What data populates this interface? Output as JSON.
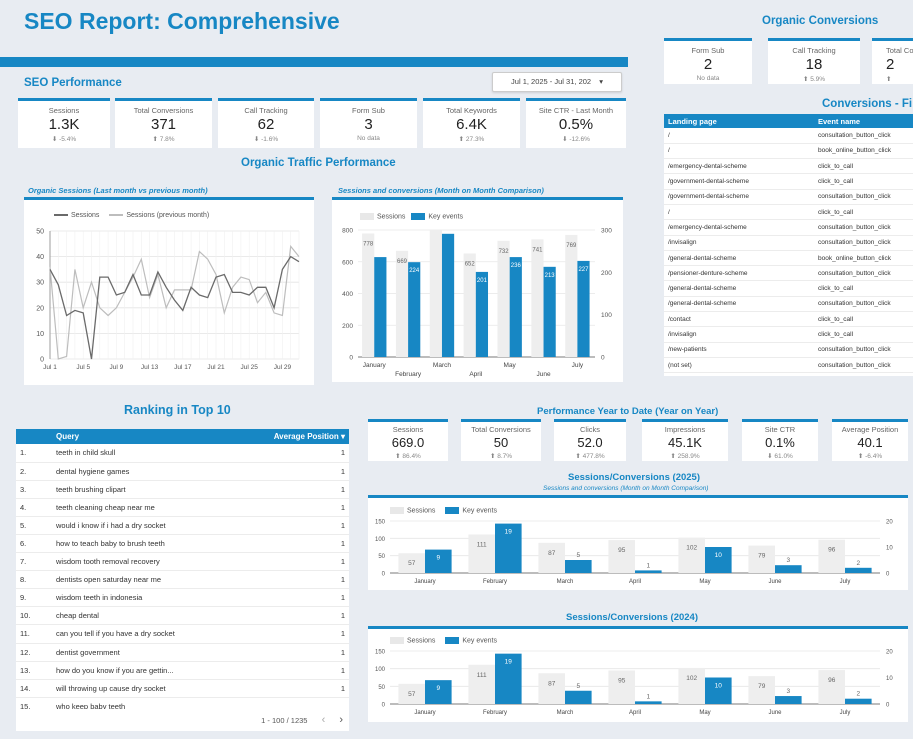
{
  "title": "SEO Report: Comprehensive",
  "seo_performance": {
    "heading": "SEO Performance",
    "date_range": "Jul 1, 2025 - Jul 31, 202",
    "cards": [
      {
        "label": "Sessions",
        "value": "1.3K",
        "delta": "-5.4%"
      },
      {
        "label": "Total Conversions",
        "value": "371",
        "delta": "7.8%"
      },
      {
        "label": "Call Tracking",
        "value": "62",
        "delta": "-1.6%"
      },
      {
        "label": "Form Sub",
        "value": "3",
        "delta": "No data"
      },
      {
        "label": "Total Keywords",
        "value": "6.4K",
        "delta": "27.3%"
      },
      {
        "label": "Site CTR - Last Month",
        "value": "0.5%",
        "delta": "-12.6%"
      }
    ]
  },
  "organic_traffic_heading": "Organic Traffic Performance",
  "organic_conversions": {
    "heading": "Organic Conversions",
    "cards": [
      {
        "label": "Form Sub",
        "value": "2",
        "delta": "No data"
      },
      {
        "label": "Call Tracking",
        "value": "18",
        "delta": "5.9%"
      },
      {
        "label": "Total Co",
        "value": "2",
        "delta": ""
      }
    ]
  },
  "conversions_table": {
    "heading": "Conversions - Fi",
    "columns": [
      "Landing page",
      "Event name"
    ],
    "rows": [
      [
        "/",
        "consultation_button_click"
      ],
      [
        "/",
        "book_online_button_click"
      ],
      [
        "/emergency-dental-scheme",
        "click_to_call"
      ],
      [
        "/government-dental-scheme",
        "click_to_call"
      ],
      [
        "/government-dental-scheme",
        "consultation_button_click"
      ],
      [
        "/",
        "click_to_call"
      ],
      [
        "/emergency-dental-scheme",
        "consultation_button_click"
      ],
      [
        "/invisalign",
        "consultation_button_click"
      ],
      [
        "/general-dental-scheme",
        "book_online_button_click"
      ],
      [
        "/pensioner-denture-scheme",
        "consultation_button_click"
      ],
      [
        "/general-dental-scheme",
        "click_to_call"
      ],
      [
        "/general-dental-scheme",
        "consultation_button_click"
      ],
      [
        "/contact",
        "click_to_call"
      ],
      [
        "/invisalign",
        "click_to_call"
      ],
      [
        "/new-patients",
        "consultation_button_click"
      ],
      [
        "(not set)",
        "consultation_button_click"
      ]
    ]
  },
  "ranking": {
    "heading": "Ranking in Top 10",
    "columns": [
      "Query",
      "Average Position"
    ],
    "rows": [
      [
        "1.",
        "teeth in child skull",
        "1"
      ],
      [
        "2.",
        "dental hygiene games",
        "1"
      ],
      [
        "3.",
        "teeth brushing clipart",
        "1"
      ],
      [
        "4.",
        "teeth cleaning cheap near me",
        "1"
      ],
      [
        "5.",
        "would i know if i had a dry socket",
        "1"
      ],
      [
        "6.",
        "how to teach baby to brush teeth",
        "1"
      ],
      [
        "7.",
        "wisdom tooth removal recovery",
        "1"
      ],
      [
        "8.",
        "dentists open saturday near me",
        "1"
      ],
      [
        "9.",
        "wisdom teeth in indonesia",
        "1"
      ],
      [
        "10.",
        "cheap dental",
        "1"
      ],
      [
        "11.",
        "can you tell if you have a dry socket",
        "1"
      ],
      [
        "12.",
        "dentist government",
        "1"
      ],
      [
        "13.",
        "how do you know if you are gettin...",
        "1"
      ],
      [
        "14.",
        "will throwing up cause dry socket",
        "1"
      ],
      [
        "15.",
        "who keep baby teeth",
        ""
      ]
    ],
    "pagination": "1 - 100 / 1235"
  },
  "ytd": {
    "heading": "Performance Year to Date (Year on Year)",
    "cards": [
      {
        "label": "Sessions",
        "value": "669.0",
        "delta": "86.4%"
      },
      {
        "label": "Total Conversions",
        "value": "50",
        "delta": "8.7%"
      },
      {
        "label": "Clicks",
        "value": "52.0",
        "delta": "477.8%"
      },
      {
        "label": "Impressions",
        "value": "45.1K",
        "delta": "258.9%"
      },
      {
        "label": "Site CTR",
        "value": "0.1%",
        "delta": "61.0%"
      },
      {
        "label": "Average Position",
        "value": "40.1",
        "delta": "-6.4%"
      }
    ]
  },
  "colors": {
    "accent": "#1787c4",
    "gray_bar": "#eeeeee",
    "line_prev": "#bdbdbd",
    "line_cur": "#6a6a6a"
  },
  "chart_data": [
    {
      "type": "line",
      "title": "Organic Sessions (Last month vs previous month)",
      "x_ticks": [
        "Jul 1",
        "Jul 5",
        "Jul 9",
        "Jul 13",
        "Jul 17",
        "Jul 21",
        "Jul 25",
        "Jul 29"
      ],
      "y_ticks": [
        0,
        10,
        20,
        30,
        40,
        50
      ],
      "ylim": [
        0,
        50
      ],
      "series": [
        {
          "name": "Sessions",
          "values": [
            35,
            29,
            17,
            19,
            18,
            0,
            32,
            32,
            25,
            26,
            33,
            25,
            25,
            34,
            28,
            23,
            19,
            28,
            25,
            24,
            32,
            33,
            26,
            26,
            25,
            28,
            28,
            20,
            35,
            40,
            38
          ]
        },
        {
          "name": "Sessions (previous month)",
          "values": [
            36,
            0,
            1,
            35,
            20,
            30,
            20,
            17,
            20,
            26,
            32,
            39,
            24,
            33,
            20,
            27,
            27,
            27,
            42,
            39,
            33,
            18,
            28,
            32,
            31,
            22,
            26,
            18,
            17,
            44,
            40
          ]
        }
      ]
    },
    {
      "type": "bar",
      "title": "Sessions and conversions (Month on Month Comparison)",
      "categories": [
        "January",
        "February",
        "March",
        "April",
        "May",
        "June",
        "July"
      ],
      "ylim_left": [
        0,
        800
      ],
      "ylim_right": [
        0,
        300
      ],
      "y_ticks_left": [
        0,
        200,
        400,
        600,
        800
      ],
      "y_ticks_right": [
        0,
        100,
        200,
        300
      ],
      "series": [
        {
          "name": "Sessions",
          "values": [
            778,
            669,
            800,
            652,
            732,
            741,
            769
          ],
          "labels": [
            "778",
            "669",
            "",
            "652",
            "732",
            "741",
            "769"
          ]
        },
        {
          "name": "Key events",
          "values": [
            236,
            224,
            291,
            201,
            236,
            213,
            227
          ],
          "labels": [
            "",
            "224",
            "",
            "201",
            "236",
            "213",
            "227"
          ]
        }
      ]
    },
    {
      "type": "bar",
      "title": "Sessions/Conversions (2025)",
      "subtitle": "Sessions and conversions (Month on Month Comparison)",
      "categories": [
        "January",
        "February",
        "March",
        "April",
        "May",
        "June",
        "July"
      ],
      "ylim_left": [
        0,
        150
      ],
      "ylim_right": [
        0,
        20
      ],
      "y_ticks_left": [
        0,
        50,
        100,
        150
      ],
      "y_ticks_right": [
        0,
        10,
        20
      ],
      "series": [
        {
          "name": "Sessions",
          "values": [
            57,
            111,
            87,
            95,
            102,
            79,
            96
          ]
        },
        {
          "name": "Key events",
          "values": [
            9,
            19,
            5,
            1,
            10,
            3,
            2
          ]
        }
      ]
    },
    {
      "type": "bar",
      "title": "Sessions/Conversions (2024)",
      "categories": [
        "January",
        "February",
        "March",
        "April",
        "May",
        "June",
        "July"
      ],
      "ylim_left": [
        0,
        150
      ],
      "ylim_right": [
        0,
        20
      ],
      "y_ticks_left": [
        0,
        50,
        100,
        150
      ],
      "y_ticks_right": [
        0,
        10,
        20
      ],
      "series": [
        {
          "name": "Sessions",
          "values": [
            57,
            111,
            87,
            95,
            102,
            79,
            96
          ]
        },
        {
          "name": "Key events",
          "values": [
            9,
            19,
            5,
            1,
            10,
            3,
            2
          ]
        }
      ]
    }
  ]
}
